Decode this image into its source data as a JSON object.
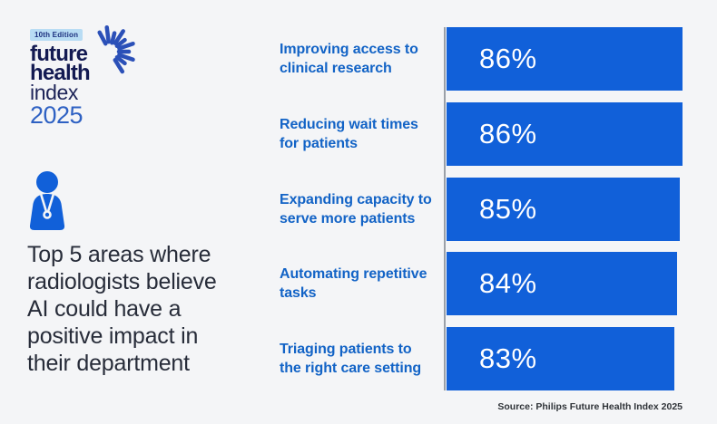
{
  "logo": {
    "edition_badge": "10th Edition",
    "word1": "future",
    "word2": "health",
    "word3": "index",
    "year": "2025"
  },
  "icons": {
    "starburst": "starburst-rays-icon",
    "doctor": "radiologist-person-with-stethoscope-icon"
  },
  "headline": "Top 5 areas where\nradiologists believe\nAI could have a\npositive impact in\ntheir department",
  "source": "Source: Philips Future Health Index 2025",
  "colors": {
    "background": "#f4f5f7",
    "bar": "#1160d9",
    "label_text": "#1263c6",
    "value_text": "#ffffff",
    "logo_navy": "#131a52",
    "logo_year_blue": "#2e61c3",
    "badge_bg": "#b8dcf4",
    "headline_text": "#272c39",
    "axis_line": "#9aa0a8",
    "source_text": "#2f3338"
  },
  "chart_data": {
    "type": "bar",
    "orientation": "horizontal",
    "title": "Top 5 areas where radiologists believe AI could have a positive impact in their department",
    "categories": [
      "Improving access to\nclinical research",
      "Reducing wait times\nfor patients",
      "Expanding capacity to\nserve more patients",
      "Automating repetitive\ntasks",
      "Triaging patients to\nthe right care setting"
    ],
    "values": [
      86,
      86,
      85,
      84,
      83
    ],
    "value_labels": [
      "86%",
      "86%",
      "85%",
      "84%",
      "83%"
    ],
    "unit": "%",
    "xlim": [
      0,
      100
    ],
    "grid": false,
    "legend": false,
    "bar_color": "#1160d9"
  }
}
